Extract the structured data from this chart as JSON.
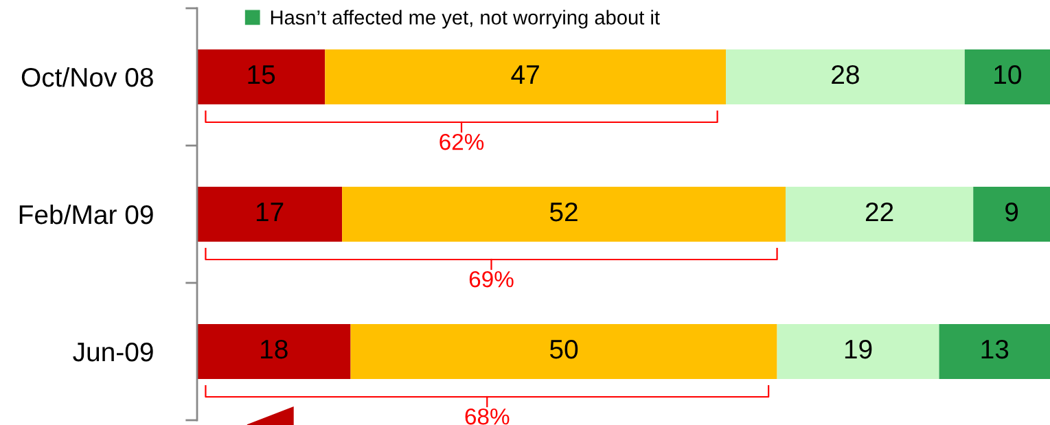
{
  "chart_data": {
    "type": "bar",
    "orientation": "horizontal",
    "stacked": true,
    "categories": [
      "Oct/Nov 08",
      "Feb/Mar 09",
      "Jun-09"
    ],
    "series": [
      {
        "color": "#c00000",
        "values": [
          15,
          17,
          18
        ]
      },
      {
        "color": "#ffc000",
        "values": [
          47,
          52,
          50
        ]
      },
      {
        "color": "#c6f7c4",
        "values": [
          28,
          22,
          19
        ]
      },
      {
        "name": "Hasn’t affected me yet, not worrying about it",
        "color": "#2ea352",
        "values": [
          10,
          9,
          13
        ]
      }
    ],
    "data_labels": true,
    "legend": "top",
    "tick_labels": "y",
    "grid": false,
    "annotations": [
      "62%",
      "69%",
      "68%"
    ]
  }
}
